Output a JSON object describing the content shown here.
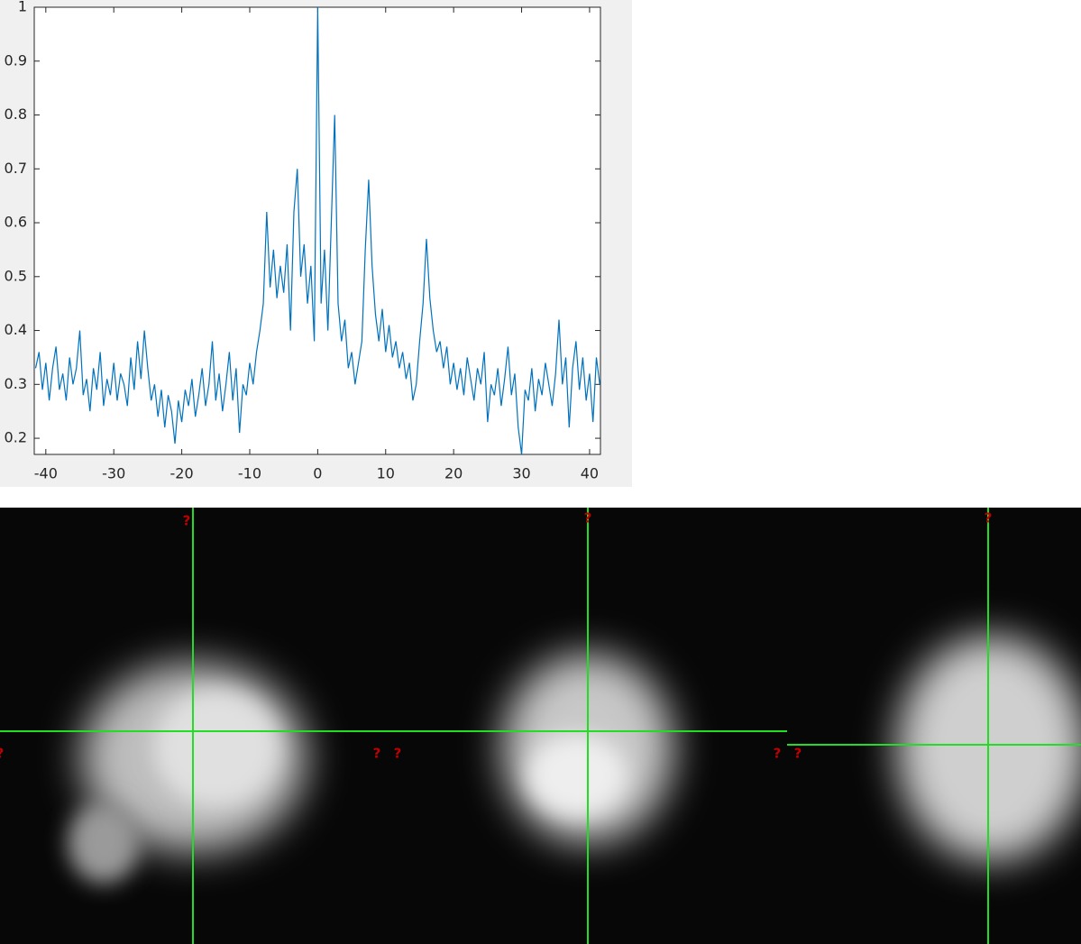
{
  "chart_data": {
    "type": "line",
    "color": "#0072bd",
    "grid": false,
    "xlim": [
      -41.7,
      41.6
    ],
    "ylim": [
      0.17,
      1
    ],
    "xticks": [
      -40,
      -30,
      -20,
      -10,
      0,
      10,
      20,
      30,
      40
    ],
    "yticks": [
      0.2,
      0.3,
      0.4,
      0.5,
      0.6,
      0.7,
      0.8,
      0.9,
      1
    ],
    "x": [
      -41.5,
      -41,
      -40.5,
      -40,
      -39.5,
      -39,
      -38.5,
      -38,
      -37.5,
      -37,
      -36.5,
      -36,
      -35.5,
      -35,
      -34.5,
      -34,
      -33.5,
      -33,
      -32.5,
      -32,
      -31.5,
      -31,
      -30.5,
      -30,
      -29.5,
      -29,
      -28.5,
      -28,
      -27.5,
      -27,
      -26.5,
      -26,
      -25.5,
      -25,
      -24.5,
      -24,
      -23.5,
      -23,
      -22.5,
      -22,
      -21.5,
      -21,
      -20.5,
      -20,
      -19.5,
      -19,
      -18.5,
      -18,
      -17.5,
      -17,
      -16.5,
      -16,
      -15.5,
      -15,
      -14.5,
      -14,
      -13.5,
      -13,
      -12.5,
      -12,
      -11.5,
      -11,
      -10.5,
      -10,
      -9.5,
      -9,
      -8.5,
      -8,
      -7.5,
      -7,
      -6.5,
      -6,
      -5.5,
      -5,
      -4.5,
      -4,
      -3.5,
      -3,
      -2.5,
      -2,
      -1.5,
      -1,
      -0.5,
      0,
      0.5,
      1,
      1.5,
      2,
      2.5,
      3,
      3.5,
      4,
      4.5,
      5,
      5.5,
      6,
      6.5,
      7,
      7.5,
      8,
      8.5,
      9,
      9.5,
      10,
      10.5,
      11,
      11.5,
      12,
      12.5,
      13,
      13.5,
      14,
      14.5,
      15,
      15.5,
      16,
      16.5,
      17,
      17.5,
      18,
      18.5,
      19,
      19.5,
      20,
      20.5,
      21,
      21.5,
      22,
      22.5,
      23,
      23.5,
      24,
      24.5,
      25,
      25.5,
      26,
      26.5,
      27,
      27.5,
      28,
      28.5,
      29,
      29.5,
      30,
      30.5,
      31,
      31.5,
      32,
      32.5,
      33,
      33.5,
      34,
      34.5,
      35,
      35.5,
      36,
      36.5,
      37,
      37.5,
      38,
      38.5,
      39,
      39.5,
      40,
      40.5,
      41,
      41.5
    ],
    "values": [
      0.33,
      0.36,
      0.29,
      0.34,
      0.27,
      0.33,
      0.37,
      0.29,
      0.32,
      0.27,
      0.35,
      0.3,
      0.33,
      0.4,
      0.28,
      0.31,
      0.25,
      0.33,
      0.29,
      0.36,
      0.26,
      0.31,
      0.28,
      0.34,
      0.27,
      0.32,
      0.3,
      0.26,
      0.35,
      0.29,
      0.38,
      0.31,
      0.4,
      0.33,
      0.27,
      0.3,
      0.24,
      0.29,
      0.22,
      0.28,
      0.25,
      0.19,
      0.27,
      0.23,
      0.29,
      0.26,
      0.31,
      0.24,
      0.28,
      0.33,
      0.26,
      0.3,
      0.38,
      0.27,
      0.32,
      0.25,
      0.3,
      0.36,
      0.27,
      0.33,
      0.21,
      0.3,
      0.28,
      0.34,
      0.3,
      0.36,
      0.4,
      0.45,
      0.62,
      0.48,
      0.55,
      0.46,
      0.52,
      0.47,
      0.56,
      0.4,
      0.62,
      0.7,
      0.5,
      0.56,
      0.45,
      0.52,
      0.38,
      1.0,
      0.45,
      0.55,
      0.4,
      0.6,
      0.8,
      0.45,
      0.38,
      0.42,
      0.33,
      0.36,
      0.3,
      0.34,
      0.38,
      0.55,
      0.68,
      0.52,
      0.43,
      0.38,
      0.44,
      0.36,
      0.41,
      0.35,
      0.38,
      0.33,
      0.36,
      0.31,
      0.34,
      0.27,
      0.3,
      0.38,
      0.45,
      0.57,
      0.46,
      0.4,
      0.36,
      0.38,
      0.33,
      0.37,
      0.3,
      0.34,
      0.29,
      0.33,
      0.28,
      0.35,
      0.31,
      0.27,
      0.33,
      0.3,
      0.36,
      0.23,
      0.3,
      0.28,
      0.33,
      0.26,
      0.31,
      0.37,
      0.28,
      0.32,
      0.22,
      0.17,
      0.29,
      0.27,
      0.33,
      0.25,
      0.31,
      0.28,
      0.34,
      0.3,
      0.26,
      0.32,
      0.42,
      0.3,
      0.35,
      0.22,
      0.33,
      0.38,
      0.29,
      0.35,
      0.27,
      0.32,
      0.23,
      0.35,
      0.3
    ]
  },
  "viewer": {
    "markers": [
      "?",
      "?",
      "?",
      "?",
      "?",
      "?",
      "?",
      "?"
    ]
  }
}
